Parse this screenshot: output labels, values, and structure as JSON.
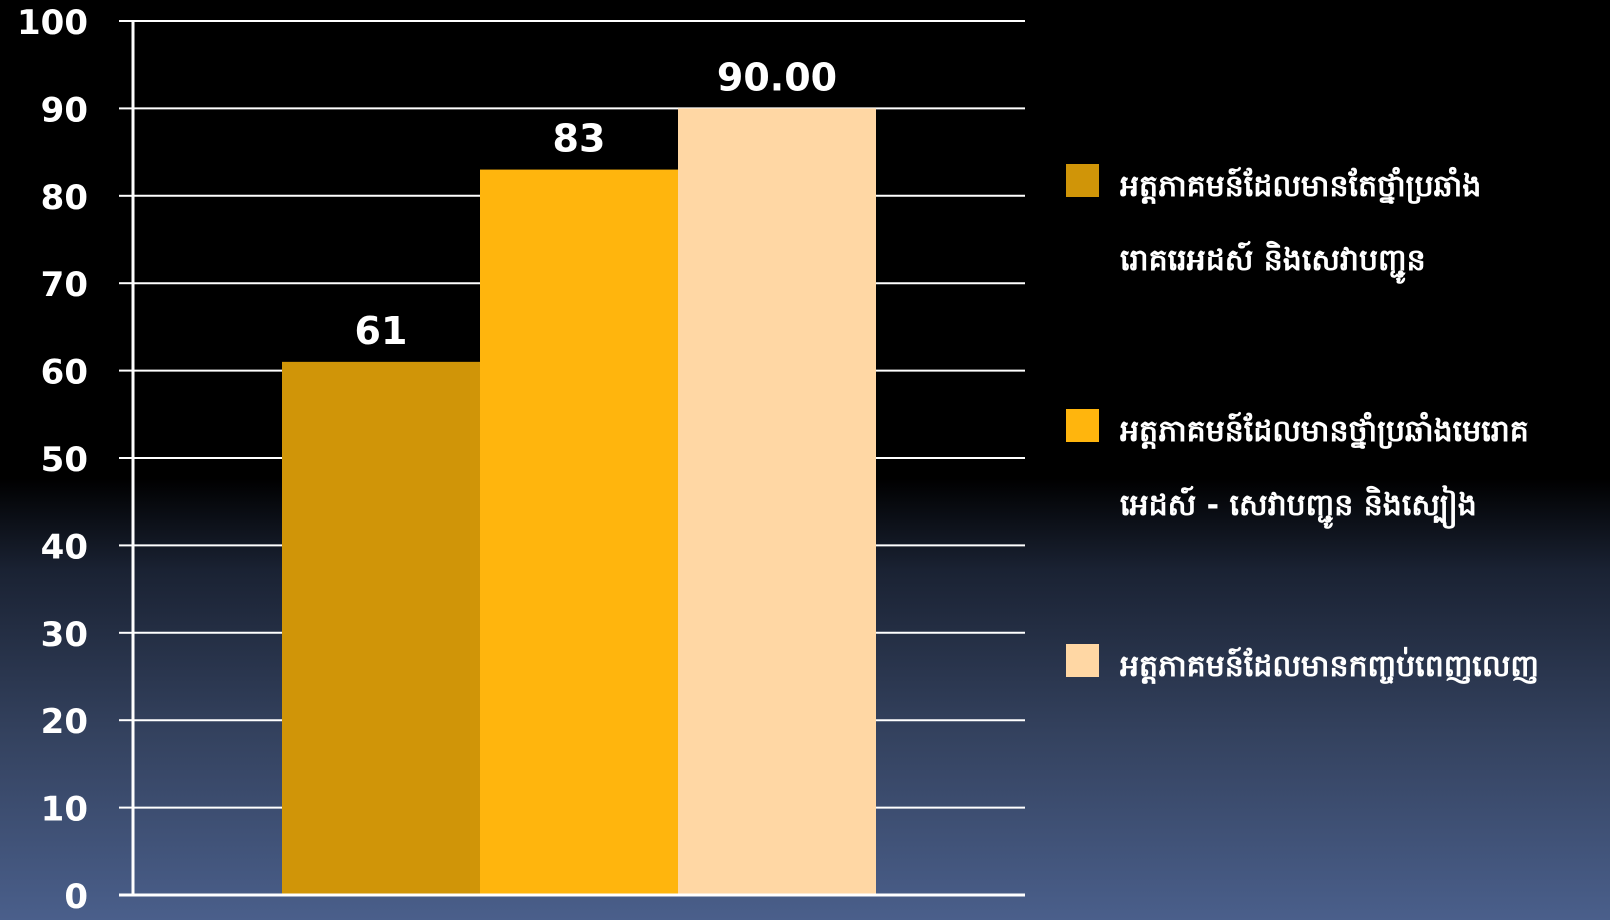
{
  "chart_data": {
    "type": "bar",
    "categories": [
      ""
    ],
    "series": [
      {
        "name": "អត្តភាគមន៍ដែលមានតែថ្នាំប្រឆាំងរោគរេអដស៍ និងសេវាបញ្ជូន",
        "values": [
          61
        ],
        "value_label": "61",
        "color": "#D09508"
      },
      {
        "name": "អត្តភាគមន៍ដែលមានថ្នាំប្រឆាំងមេរោគអេដស៍ - សេវាបញ្ជូន និងស្បៀង",
        "values": [
          83
        ],
        "value_label": "83",
        "color": "#FFB50D"
      },
      {
        "name": "អត្តភាគមន៍ដែលមានកញ្ចប់ពេញលេញ",
        "values": [
          90
        ],
        "value_label": "90.00",
        "color": "#FFD7A4"
      }
    ],
    "ylim": [
      0,
      100
    ],
    "yticks": [
      0,
      10,
      20,
      30,
      40,
      50,
      60,
      70,
      80,
      90,
      100
    ],
    "grid": true,
    "legend": "right",
    "title": "",
    "xlabel": "",
    "ylabel": ""
  }
}
